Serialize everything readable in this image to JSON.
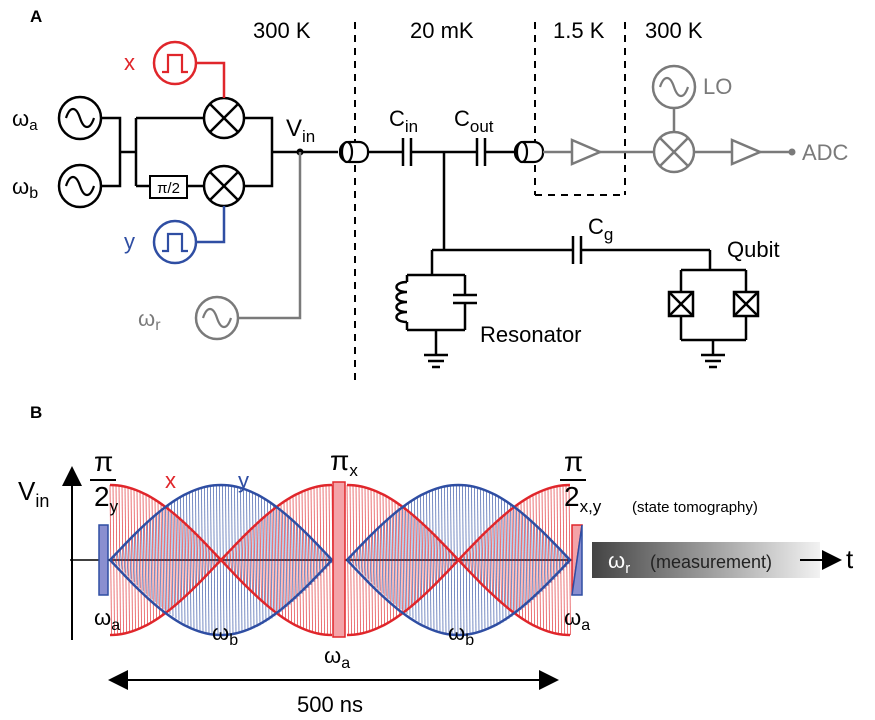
{
  "panel_a": {
    "label": "A",
    "temps": [
      "300 K",
      "20 mK",
      "1.5 K",
      "300 K"
    ],
    "omega_a_label": "ω",
    "omega_a_sub": "a",
    "omega_b_label": "ω",
    "omega_b_sub": "b",
    "omega_r_label": "ω",
    "omega_r_sub": "r",
    "x_label": "x",
    "y_label": "y",
    "phase_box": "π/2",
    "vin_main": "V",
    "vin_sub": "in",
    "cin_main": "C",
    "cin_sub": "in",
    "cout_main": "C",
    "cout_sub": "out",
    "cg_main": "C",
    "cg_sub": "g",
    "lo_label": "LO",
    "adc_label": "ADC",
    "qubit_label": "Qubit",
    "resonator_label": "Resonator"
  },
  "panel_b": {
    "label": "B",
    "vin_main": "V",
    "vin_sub": "in",
    "pi": "π",
    "two": "2",
    "pi2_y_sub": "y",
    "pix_sub": "x",
    "pi2_xy_sub": "x,y",
    "x_label": "x",
    "y_label": "y",
    "state_tomography": "(state tomography)",
    "measurement_omega": "ω",
    "measurement_sub": "r",
    "measurement_text": "(measurement)",
    "t_label": "t",
    "omega_a": "ω",
    "sub_a": "a",
    "omega_b": "ω",
    "sub_b": "b",
    "duration": "500 ns"
  },
  "colors": {
    "x_red": "#e0262b",
    "y_blue": "#2f4ea3",
    "gray": "#7a7a7a",
    "pulse_red_fill": "#f4a3a8",
    "pulse_blue_fill": "#8a8fd0"
  }
}
